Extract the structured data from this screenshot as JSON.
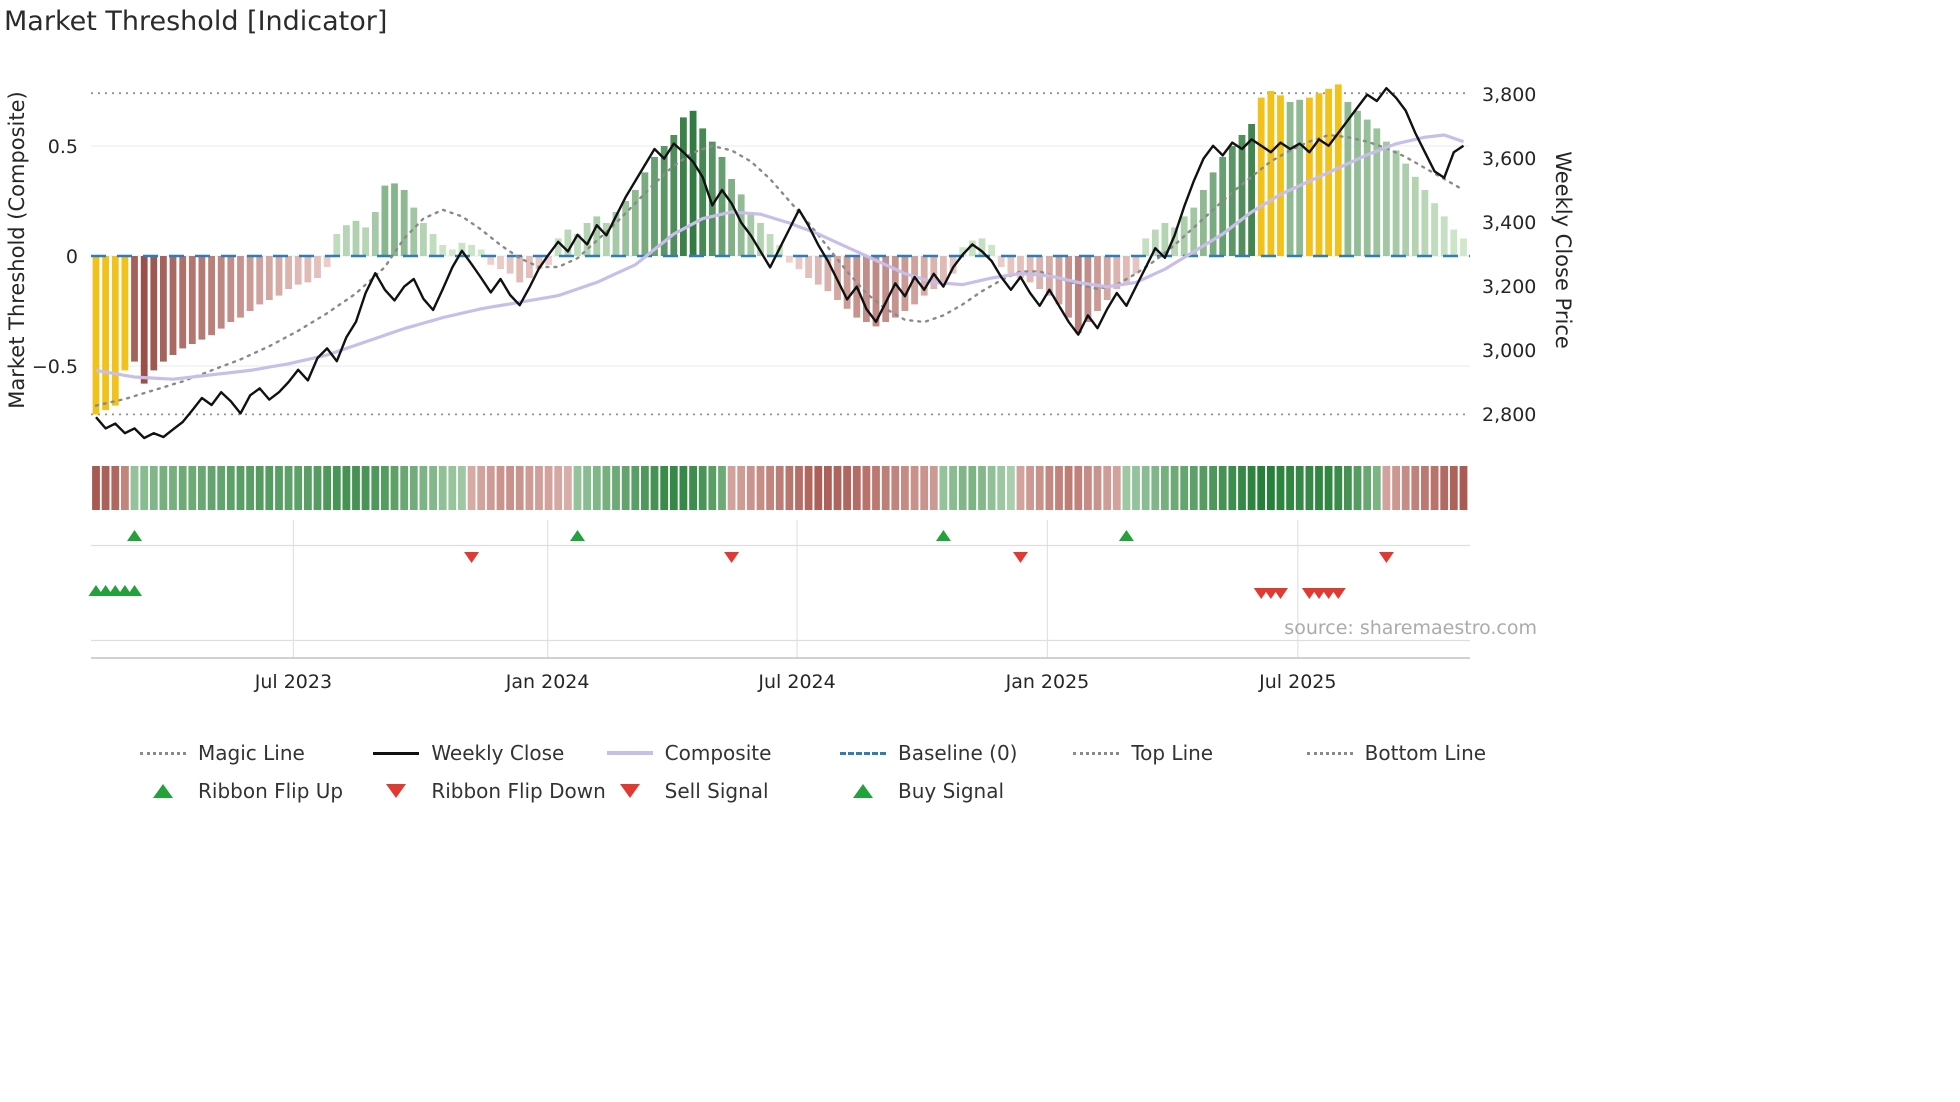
{
  "title": "Market Threshold [Indicator]",
  "source": "source: sharemaestro.com",
  "legend": {
    "row1": [
      {
        "label": "Magic Line",
        "swatch": "dotted-gray"
      },
      {
        "label": "Weekly Close",
        "swatch": "solid-black"
      },
      {
        "label": "Composite",
        "swatch": "solid-lavender"
      },
      {
        "label": "Baseline (0)",
        "swatch": "dashed-blue"
      },
      {
        "label": "Top Line",
        "swatch": "dotted-gray"
      },
      {
        "label": "Bottom Line",
        "swatch": "dotted-gray"
      }
    ],
    "row2": [
      {
        "label": "Ribbon Flip Up",
        "swatch": "triangle-up-green"
      },
      {
        "label": "Ribbon Flip Down",
        "swatch": "triangle-down-red"
      },
      {
        "label": "Sell Signal",
        "swatch": "triangle-down-red"
      },
      {
        "label": "Buy Signal",
        "swatch": "triangle-up-green"
      }
    ]
  },
  "colors": {
    "bar_green_light": "#d8edd2",
    "bar_green_dark": "#1e6b30",
    "bar_red_light": "#f3d9d5",
    "bar_red_dark": "#9a4f49",
    "highlight": "#f1c21b",
    "ribbon_green_light": "#e4f2e0",
    "ribbon_green_dark": "#1d7a30",
    "ribbon_red_light": "#f4ddd9",
    "ribbon_red_dark": "#a04a42",
    "weekly_close": "#111111",
    "composite": "#c8bfe9",
    "magic": "#8a8a8a",
    "baseline": "#2e7db8",
    "ref_line": "#909090",
    "flip_up": "#23a23c",
    "flip_down": "#df3b32",
    "grid": "#efefef",
    "tick_text": "#262626",
    "source_text": "#ababab"
  },
  "chart_data": {
    "type": "bar",
    "title": "Market Threshold [Indicator]",
    "xlabel": "",
    "x_unit": "week",
    "axes": {
      "left_label": "Market Threshold (Composite)",
      "right_label": "Weekly Close Price",
      "left_ticks": [
        {
          "label": "0.5",
          "value": 0.5
        },
        {
          "label": "0",
          "value": 0
        },
        {
          "label": "−0.5",
          "value": -0.5
        }
      ],
      "right_ticks": [
        {
          "label": "3,800",
          "value": 3800
        },
        {
          "label": "3,600",
          "value": 3600
        },
        {
          "label": "3,400",
          "value": 3400
        },
        {
          "label": "3,200",
          "value": 3200
        },
        {
          "label": "3,000",
          "value": 3000
        },
        {
          "label": "2,800",
          "value": 2800
        }
      ],
      "x_ticks": [
        {
          "label": "Jul 2023",
          "week": 20.5
        },
        {
          "label": "Jan 2024",
          "week": 46.9
        },
        {
          "label": "Jul 2024",
          "week": 72.8
        },
        {
          "label": "Jan 2025",
          "week": 98.8
        },
        {
          "label": "Jul 2025",
          "week": 124.8
        }
      ]
    },
    "ylim_left": [
      -0.84,
      0.88
    ],
    "ylim_right": [
      2720,
      3900
    ],
    "reference_lines": {
      "top_line": 0.74,
      "baseline": 0,
      "bottom_line": -0.72
    },
    "histogram": [
      -0.72,
      -0.7,
      -0.68,
      -0.52,
      -0.48,
      -0.58,
      -0.52,
      -0.48,
      -0.45,
      -0.42,
      -0.4,
      -0.38,
      -0.36,
      -0.33,
      -0.3,
      -0.28,
      -0.25,
      -0.22,
      -0.2,
      -0.18,
      -0.15,
      -0.13,
      -0.12,
      -0.1,
      -0.05,
      0.1,
      0.14,
      0.16,
      0.13,
      0.2,
      0.32,
      0.33,
      0.3,
      0.22,
      0.15,
      0.1,
      0.05,
      0.03,
      0.06,
      0.05,
      0.03,
      -0.04,
      -0.06,
      -0.08,
      -0.12,
      -0.1,
      -0.06,
      -0.04,
      0.08,
      0.12,
      0.1,
      0.15,
      0.18,
      0.15,
      0.2,
      0.25,
      0.3,
      0.38,
      0.45,
      0.5,
      0.55,
      0.63,
      0.66,
      0.58,
      0.52,
      0.45,
      0.35,
      0.28,
      0.2,
      0.15,
      0.1,
      0.05,
      -0.03,
      -0.06,
      -0.1,
      -0.13,
      -0.16,
      -0.2,
      -0.24,
      -0.28,
      -0.3,
      -0.32,
      -0.3,
      -0.28,
      -0.25,
      -0.22,
      -0.18,
      -0.15,
      -0.12,
      -0.08,
      0.04,
      0.07,
      0.08,
      0.05,
      -0.05,
      -0.08,
      -0.1,
      -0.12,
      -0.15,
      -0.18,
      -0.22,
      -0.28,
      -0.35,
      -0.3,
      -0.25,
      -0.2,
      -0.15,
      -0.12,
      -0.08,
      0.08,
      0.12,
      0.15,
      0.13,
      0.18,
      0.22,
      0.3,
      0.38,
      0.45,
      0.5,
      0.55,
      0.6,
      0.72,
      0.75,
      0.73,
      0.7,
      0.71,
      0.72,
      0.74,
      0.76,
      0.78,
      0.7,
      0.66,
      0.62,
      0.58,
      0.52,
      0.48,
      0.42,
      0.36,
      0.3,
      0.24,
      0.18,
      0.12,
      0.08
    ],
    "highlight_weeks": [
      0,
      1,
      2,
      3,
      121,
      122,
      123,
      126,
      127,
      128,
      129
    ],
    "light_weeks": [
      124,
      125,
      130,
      131,
      132,
      133,
      134,
      135,
      136,
      137,
      138,
      139,
      140,
      141,
      142
    ],
    "weekly_close": [
      2790,
      2755,
      2770,
      2740,
      2755,
      2725,
      2740,
      2728,
      2752,
      2775,
      2812,
      2850,
      2828,
      2868,
      2840,
      2802,
      2858,
      2880,
      2845,
      2868,
      2900,
      2938,
      2905,
      2975,
      3005,
      2965,
      3040,
      3088,
      3178,
      3240,
      3188,
      3155,
      3198,
      3222,
      3160,
      3125,
      3190,
      3258,
      3310,
      3268,
      3225,
      3180,
      3222,
      3172,
      3140,
      3195,
      3255,
      3298,
      3338,
      3308,
      3360,
      3330,
      3390,
      3358,
      3418,
      3478,
      3528,
      3578,
      3628,
      3598,
      3645,
      3618,
      3588,
      3540,
      3452,
      3500,
      3458,
      3398,
      3358,
      3308,
      3258,
      3318,
      3378,
      3438,
      3388,
      3328,
      3278,
      3218,
      3158,
      3198,
      3128,
      3088,
      3148,
      3208,
      3168,
      3228,
      3188,
      3238,
      3198,
      3258,
      3298,
      3330,
      3308,
      3278,
      3228,
      3188,
      3228,
      3178,
      3138,
      3188,
      3138,
      3088,
      3048,
      3108,
      3068,
      3128,
      3178,
      3138,
      3198,
      3258,
      3318,
      3288,
      3358,
      3448,
      3528,
      3598,
      3638,
      3608,
      3648,
      3628,
      3658,
      3638,
      3618,
      3648,
      3628,
      3645,
      3618,
      3658,
      3638,
      3678,
      3718,
      3758,
      3798,
      3778,
      3818,
      3788,
      3748,
      3678,
      3618,
      3558,
      3538,
      3618,
      3638
    ],
    "composite_line_anchors": [
      [
        0,
        -0.52
      ],
      [
        4,
        -0.55
      ],
      [
        8,
        -0.56
      ],
      [
        12,
        -0.54
      ],
      [
        16,
        -0.52
      ],
      [
        20,
        -0.49
      ],
      [
        24,
        -0.45
      ],
      [
        28,
        -0.39
      ],
      [
        32,
        -0.33
      ],
      [
        36,
        -0.28
      ],
      [
        40,
        -0.24
      ],
      [
        44,
        -0.21
      ],
      [
        48,
        -0.18
      ],
      [
        52,
        -0.12
      ],
      [
        56,
        -0.04
      ],
      [
        60,
        0.1
      ],
      [
        63,
        0.17
      ],
      [
        66,
        0.2
      ],
      [
        69,
        0.19
      ],
      [
        72,
        0.15
      ],
      [
        75,
        0.1
      ],
      [
        78,
        0.04
      ],
      [
        81,
        -0.02
      ],
      [
        84,
        -0.08
      ],
      [
        87,
        -0.12
      ],
      [
        90,
        -0.13
      ],
      [
        93,
        -0.1
      ],
      [
        96,
        -0.08
      ],
      [
        99,
        -0.09
      ],
      [
        102,
        -0.12
      ],
      [
        105,
        -0.14
      ],
      [
        108,
        -0.12
      ],
      [
        111,
        -0.06
      ],
      [
        114,
        0.02
      ],
      [
        117,
        0.1
      ],
      [
        120,
        0.2
      ],
      [
        123,
        0.28
      ],
      [
        126,
        0.34
      ],
      [
        129,
        0.4
      ],
      [
        132,
        0.46
      ],
      [
        135,
        0.51
      ],
      [
        138,
        0.54
      ],
      [
        140,
        0.55
      ],
      [
        142,
        0.52
      ]
    ],
    "magic_line_anchors": [
      [
        0,
        -0.68
      ],
      [
        3,
        -0.65
      ],
      [
        6,
        -0.61
      ],
      [
        9,
        -0.57
      ],
      [
        12,
        -0.52
      ],
      [
        15,
        -0.47
      ],
      [
        18,
        -0.41
      ],
      [
        21,
        -0.34
      ],
      [
        24,
        -0.26
      ],
      [
        27,
        -0.17
      ],
      [
        30,
        -0.05
      ],
      [
        32,
        0.08
      ],
      [
        34,
        0.17
      ],
      [
        36,
        0.21
      ],
      [
        38,
        0.18
      ],
      [
        40,
        0.12
      ],
      [
        42,
        0.05
      ],
      [
        44,
        -0.01
      ],
      [
        46,
        -0.05
      ],
      [
        48,
        -0.05
      ],
      [
        50,
        -0.01
      ],
      [
        52,
        0.07
      ],
      [
        54,
        0.15
      ],
      [
        56,
        0.24
      ],
      [
        58,
        0.33
      ],
      [
        60,
        0.41
      ],
      [
        62,
        0.47
      ],
      [
        64,
        0.5
      ],
      [
        66,
        0.48
      ],
      [
        68,
        0.43
      ],
      [
        70,
        0.35
      ],
      [
        72,
        0.25
      ],
      [
        74,
        0.15
      ],
      [
        76,
        0.04
      ],
      [
        78,
        -0.07
      ],
      [
        80,
        -0.17
      ],
      [
        82,
        -0.24
      ],
      [
        84,
        -0.29
      ],
      [
        86,
        -0.3
      ],
      [
        88,
        -0.27
      ],
      [
        90,
        -0.22
      ],
      [
        92,
        -0.16
      ],
      [
        94,
        -0.11
      ],
      [
        96,
        -0.07
      ],
      [
        98,
        -0.07
      ],
      [
        100,
        -0.1
      ],
      [
        102,
        -0.13
      ],
      [
        104,
        -0.15
      ],
      [
        106,
        -0.13
      ],
      [
        108,
        -0.08
      ],
      [
        110,
        -0.02
      ],
      [
        112,
        0.05
      ],
      [
        114,
        0.13
      ],
      [
        116,
        0.21
      ],
      [
        118,
        0.29
      ],
      [
        120,
        0.36
      ],
      [
        122,
        0.43
      ],
      [
        124,
        0.48
      ],
      [
        126,
        0.52
      ],
      [
        128,
        0.55
      ],
      [
        130,
        0.54
      ],
      [
        132,
        0.52
      ],
      [
        134,
        0.49
      ],
      [
        136,
        0.45
      ],
      [
        138,
        0.4
      ],
      [
        140,
        0.35
      ],
      [
        142,
        0.3
      ]
    ],
    "ribbon": [
      -0.9,
      -0.85,
      -0.8,
      -0.6,
      0.4,
      0.45,
      0.5,
      0.55,
      0.55,
      0.6,
      0.6,
      0.62,
      0.65,
      0.65,
      0.68,
      0.7,
      0.7,
      0.72,
      0.72,
      0.7,
      0.68,
      0.68,
      0.7,
      0.72,
      0.75,
      0.78,
      0.8,
      0.8,
      0.78,
      0.75,
      0.72,
      0.68,
      0.62,
      0.58,
      0.52,
      0.48,
      0.42,
      0.38,
      0.35,
      -0.35,
      -0.4,
      -0.45,
      -0.5,
      -0.52,
      -0.5,
      -0.45,
      -0.42,
      -0.4,
      -0.36,
      -0.32,
      0.4,
      0.45,
      0.5,
      0.55,
      0.6,
      0.65,
      0.7,
      0.75,
      0.8,
      0.85,
      0.88,
      0.88,
      0.84,
      0.78,
      0.7,
      0.6,
      -0.4,
      -0.45,
      -0.5,
      -0.55,
      -0.6,
      -0.65,
      -0.7,
      -0.75,
      -0.8,
      -0.85,
      -0.85,
      -0.82,
      -0.8,
      -0.76,
      -0.72,
      -0.68,
      -0.64,
      -0.6,
      -0.56,
      -0.52,
      -0.5,
      -0.46,
      0.4,
      0.45,
      0.5,
      0.52,
      0.48,
      0.42,
      0.36,
      0.3,
      -0.4,
      -0.46,
      -0.52,
      -0.58,
      -0.62,
      -0.66,
      -0.62,
      -0.56,
      -0.5,
      -0.44,
      -0.4,
      0.35,
      0.4,
      0.45,
      0.5,
      0.55,
      0.6,
      0.64,
      0.68,
      0.72,
      0.76,
      0.8,
      0.84,
      0.88,
      0.92,
      0.95,
      0.95,
      0.92,
      0.9,
      0.88,
      0.88,
      0.9,
      0.9,
      0.86,
      0.8,
      0.72,
      0.62,
      0.52,
      -0.4,
      -0.48,
      -0.55,
      -0.62,
      -0.68,
      -0.72,
      -0.78,
      -0.84,
      -0.88
    ],
    "signals": {
      "ribbon_flip_up_weeks": [
        4,
        50,
        88,
        107
      ],
      "ribbon_flip_down_weeks": [
        39,
        66,
        96,
        134
      ],
      "buy_signal_weeks": [
        0,
        1,
        2,
        3,
        4
      ],
      "sell_signal_weeks": [
        121,
        122,
        123,
        126,
        127,
        128,
        129
      ]
    }
  }
}
